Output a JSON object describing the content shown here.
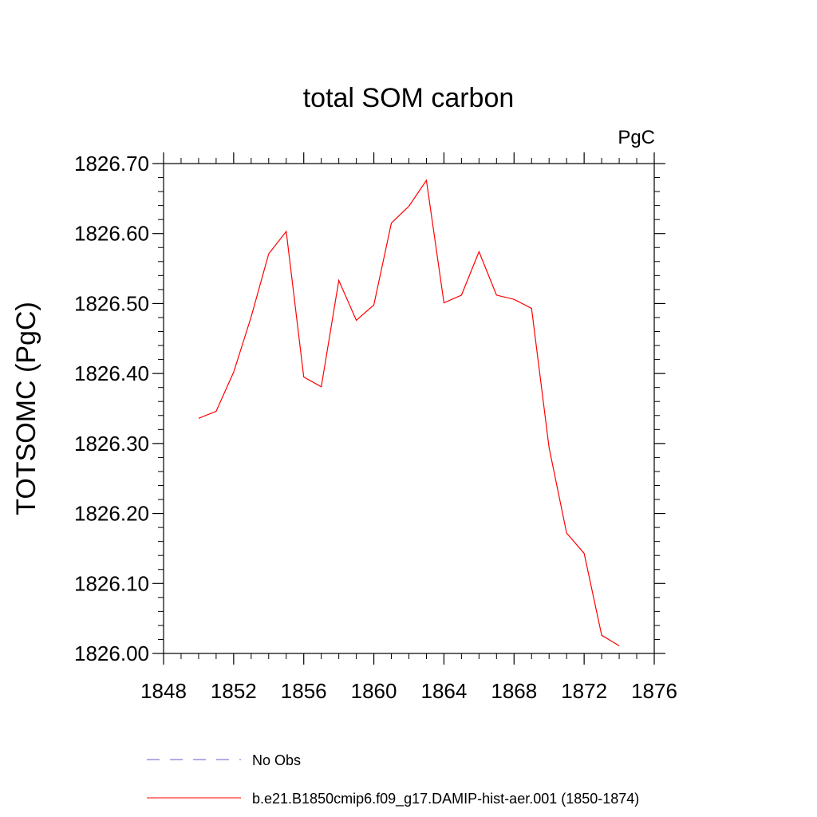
{
  "chart_data": {
    "type": "line",
    "title": "total SOM carbon",
    "units_label": "PgC",
    "ylabel": "TOTSOMC  (PgC)",
    "xlabel": "",
    "xlim": [
      1848,
      1876
    ],
    "ylim": [
      1826.0,
      1826.7
    ],
    "x_major_ticks": [
      1848,
      1852,
      1856,
      1860,
      1864,
      1868,
      1872,
      1876
    ],
    "x_tick_labels": [
      "1848",
      "1852",
      "1856",
      "1860",
      "1864",
      "1868",
      "1872",
      "1876"
    ],
    "y_major_ticks": [
      1826.0,
      1826.1,
      1826.2,
      1826.3,
      1826.4,
      1826.5,
      1826.6,
      1826.7
    ],
    "y_tick_labels": [
      "1826.00",
      "1826.10",
      "1826.20",
      "1826.30",
      "1826.40",
      "1826.50",
      "1826.60",
      "1826.70"
    ],
    "grid": false,
    "legend_position": "bottom",
    "series": [
      {
        "name": "b.e21.B1850cmip6.f09_g17.DAMIP-hist-aer.001 (1850-1874)",
        "color": "#ff0000",
        "style": "solid",
        "x": [
          1850,
          1851,
          1852,
          1853,
          1854,
          1855,
          1856,
          1857,
          1858,
          1859,
          1860,
          1861,
          1862,
          1863,
          1864,
          1865,
          1866,
          1867,
          1868,
          1869,
          1870,
          1871,
          1872,
          1873,
          1874
        ],
        "values": [
          1826.336,
          1826.346,
          1826.402,
          1826.481,
          1826.571,
          1826.603,
          1826.395,
          1826.381,
          1826.533,
          1826.476,
          1826.498,
          1826.615,
          1826.639,
          1826.676,
          1826.501,
          1826.512,
          1826.574,
          1826.512,
          1826.506,
          1826.493,
          1826.294,
          1826.172,
          1826.143,
          1826.026,
          1826.011
        ]
      }
    ],
    "legend": [
      {
        "label": "No Obs",
        "color": "#6a5acd",
        "style": "dashed"
      },
      {
        "label": "b.e21.B1850cmip6.f09_g17.DAMIP-hist-aer.001 (1850-1874)",
        "color": "#ff0000",
        "style": "solid"
      }
    ]
  }
}
